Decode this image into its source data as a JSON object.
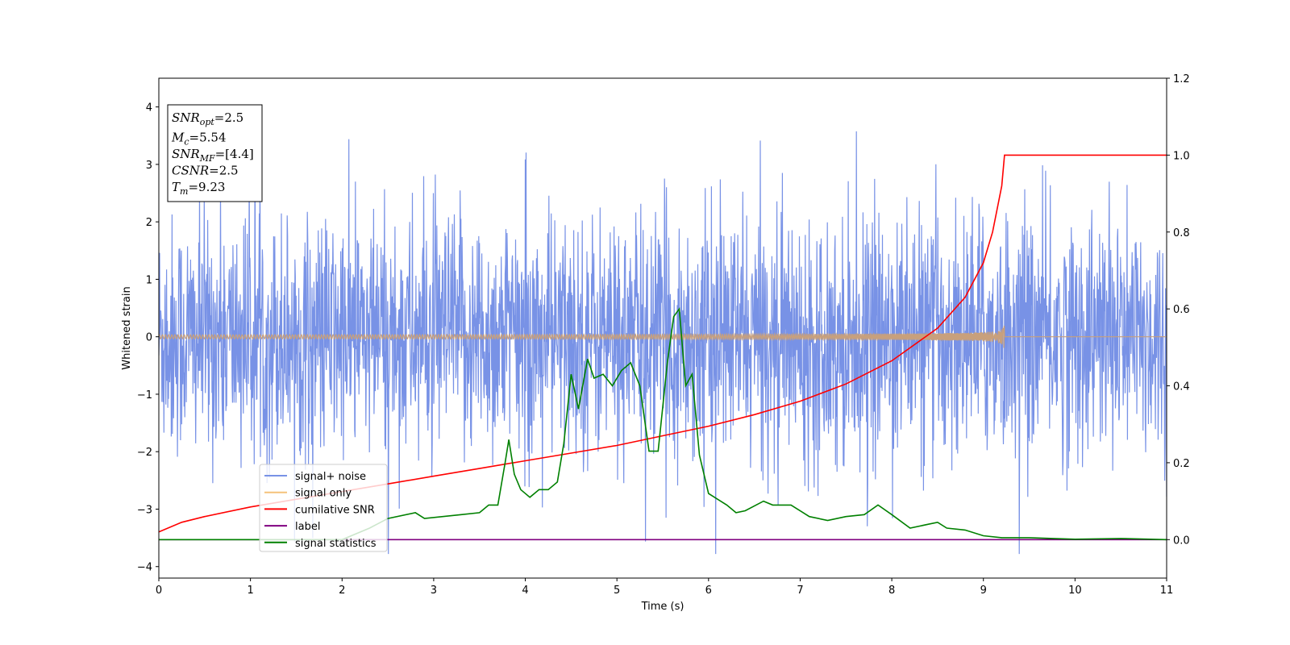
{
  "chart_data": {
    "type": "line",
    "xlabel": "Time (s)",
    "ylabel": "Whitened strain",
    "xlim": [
      0,
      11
    ],
    "ylim": [
      -4.2,
      4.5
    ],
    "y2lim": [
      -0.1,
      1.2
    ],
    "x_ticks": [
      "0",
      "1",
      "2",
      "3",
      "4",
      "5",
      "6",
      "7",
      "8",
      "9",
      "10",
      "11"
    ],
    "y_ticks": [
      "−4",
      "−3",
      "−2",
      "−1",
      "0",
      "1",
      "2",
      "3",
      "4"
    ],
    "y2_ticks": [
      "0.0",
      "0.2",
      "0.4",
      "0.6",
      "0.8",
      "1.0",
      "1.2"
    ],
    "grid": false,
    "legend_position": "lower-left",
    "info_box": [
      {
        "main": "SNR",
        "sub": "opt",
        "rest": "=2.5"
      },
      {
        "main": "M",
        "sub": "c",
        "rest": "=5.54"
      },
      {
        "main": "SNR",
        "sub": "MF",
        "rest": "=[4.4]"
      },
      {
        "main": "CSNR",
        "sub": "",
        "rest": "=2.5"
      },
      {
        "main": "T",
        "sub": "m",
        "rest": "=9.23"
      }
    ],
    "series": [
      {
        "name": "signal+ noise",
        "color": "#7892e6",
        "axis": "left",
        "style": "noise",
        "envelope_amplitude_approx": 4.2
      },
      {
        "name": "signal only",
        "color": "#f5c27a",
        "axis": "left",
        "style": "chirp",
        "merger_time": 9.23,
        "peak_amplitude": 0.28
      },
      {
        "name": "cumilative SNR",
        "color": "#ff0000",
        "axis": "right",
        "x": [
          0,
          0.25,
          0.5,
          1,
          1.5,
          2,
          2.5,
          3,
          3.5,
          4,
          4.5,
          5,
          5.5,
          6,
          6.5,
          7,
          7.5,
          8,
          8.5,
          8.8,
          9,
          9.1,
          9.2,
          9.23,
          11
        ],
        "values": [
          0.02,
          0.045,
          0.06,
          0.085,
          0.105,
          0.125,
          0.145,
          0.165,
          0.185,
          0.205,
          0.225,
          0.245,
          0.27,
          0.295,
          0.325,
          0.36,
          0.405,
          0.465,
          0.55,
          0.63,
          0.72,
          0.8,
          0.92,
          1.0,
          1.0
        ]
      },
      {
        "name": "label",
        "color": "#800080",
        "axis": "right",
        "x": [
          0,
          11
        ],
        "values": [
          0,
          0
        ]
      },
      {
        "name": "signal statistics",
        "color": "#008000",
        "axis": "right",
        "x": [
          0,
          1,
          2,
          2.3,
          2.5,
          2.8,
          2.9,
          3.3,
          3.5,
          3.6,
          3.7,
          3.78,
          3.82,
          3.88,
          3.95,
          4.05,
          4.15,
          4.25,
          4.35,
          4.42,
          4.5,
          4.58,
          4.68,
          4.75,
          4.85,
          4.95,
          5.05,
          5.15,
          5.25,
          5.35,
          5.45,
          5.55,
          5.62,
          5.68,
          5.75,
          5.82,
          5.9,
          6.0,
          6.2,
          6.3,
          6.4,
          6.6,
          6.7,
          6.8,
          6.9,
          7.1,
          7.3,
          7.5,
          7.7,
          7.85,
          8.0,
          8.2,
          8.4,
          8.5,
          8.6,
          8.8,
          9.0,
          9.2,
          9.5,
          10,
          10.5,
          11
        ],
        "values": [
          0,
          0,
          0,
          0.03,
          0.055,
          0.07,
          0.055,
          0.065,
          0.07,
          0.09,
          0.09,
          0.2,
          0.26,
          0.17,
          0.13,
          0.11,
          0.13,
          0.13,
          0.15,
          0.25,
          0.43,
          0.34,
          0.47,
          0.42,
          0.43,
          0.4,
          0.44,
          0.46,
          0.4,
          0.23,
          0.23,
          0.46,
          0.58,
          0.6,
          0.4,
          0.43,
          0.22,
          0.12,
          0.09,
          0.07,
          0.075,
          0.1,
          0.09,
          0.09,
          0.09,
          0.06,
          0.05,
          0.06,
          0.065,
          0.09,
          0.065,
          0.03,
          0.04,
          0.045,
          0.03,
          0.025,
          0.01,
          0.005,
          0.005,
          0.001,
          0.003,
          0.0
        ]
      }
    ]
  }
}
